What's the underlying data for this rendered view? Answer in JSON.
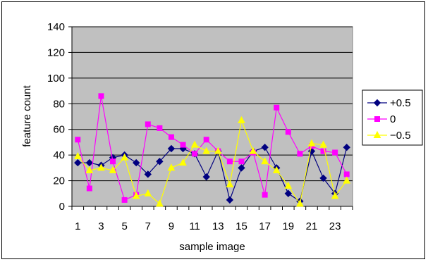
{
  "chart_data": {
    "type": "line",
    "title": "",
    "xlabel": "sample image",
    "ylabel": "feature count",
    "ylim": [
      0,
      140
    ],
    "yticks": [
      0,
      20,
      40,
      60,
      80,
      100,
      120,
      140
    ],
    "x": [
      1,
      2,
      3,
      4,
      5,
      6,
      7,
      8,
      9,
      10,
      11,
      12,
      13,
      14,
      15,
      16,
      17,
      18,
      19,
      20,
      21,
      22,
      23,
      24
    ],
    "xtick_labels": [
      "1",
      "3",
      "5",
      "7",
      "9",
      "11",
      "13",
      "15",
      "17",
      "19",
      "21",
      "23"
    ],
    "grid": "horizontal",
    "legend_position": "right",
    "series": [
      {
        "name": "+0.5",
        "color": "#000080",
        "marker": "diamond",
        "values": [
          34,
          34,
          32,
          38,
          40,
          34,
          25,
          35,
          45,
          45,
          41,
          23,
          43,
          5,
          30,
          43,
          46,
          30,
          10,
          4,
          43,
          22,
          10,
          46
        ]
      },
      {
        "name": "0",
        "color": "#ff00ff",
        "marker": "square",
        "values": [
          52,
          14,
          86,
          35,
          5,
          9,
          64,
          61,
          54,
          48,
          41,
          52,
          43,
          35,
          35,
          42,
          9,
          77,
          58,
          41,
          47,
          43,
          42,
          25
        ]
      },
      {
        "name": "−0.5",
        "color": "#ffff00",
        "marker": "triangle",
        "values": [
          39,
          28,
          30,
          28,
          38,
          8,
          10,
          2,
          30,
          34,
          48,
          43,
          43,
          17,
          67,
          43,
          35,
          28,
          16,
          2,
          49,
          48,
          8,
          20
        ]
      }
    ]
  }
}
